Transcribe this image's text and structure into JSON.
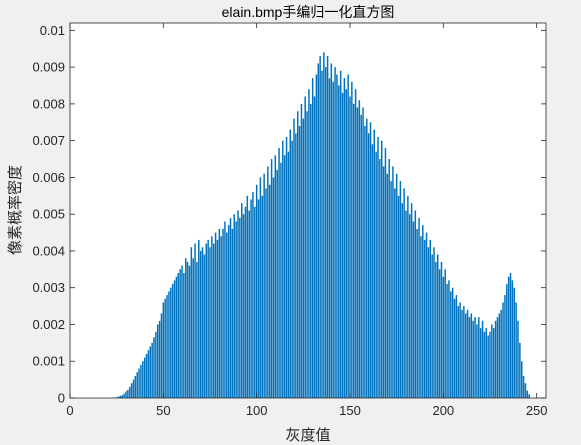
{
  "chart_data": {
    "type": "bar",
    "title": "elain.bmp手编归一化直方图",
    "xlabel": "灰度值",
    "ylabel": "像素概率密度",
    "xlim": [
      0,
      255
    ],
    "ylim": [
      0,
      0.0102
    ],
    "xticks": [
      0,
      50,
      100,
      150,
      200,
      250
    ],
    "yticks": [
      0,
      0.001,
      0.002,
      0.003,
      0.004,
      0.005,
      0.006,
      0.007,
      0.008,
      0.009,
      0.01
    ],
    "ytick_labels": [
      "0",
      "0.001",
      "0.002",
      "0.003",
      "0.004",
      "0.005",
      "0.006",
      "0.007",
      "0.008",
      "0.009",
      "0.01"
    ],
    "bar_color": "#0072bd",
    "grid": false,
    "x_start": 0,
    "values": [
      0,
      0,
      0,
      0,
      0,
      0,
      0,
      0,
      0,
      0,
      0,
      0,
      0,
      0,
      0,
      0,
      0,
      0,
      0,
      0,
      0,
      0,
      0,
      0,
      1e-05,
      2e-05,
      4e-05,
      6e-05,
      8e-05,
      0.00012,
      0.00018,
      0.00022,
      0.0003,
      0.0004,
      0.0005,
      0.0006,
      0.0007,
      0.0008,
      0.0009,
      0.001,
      0.0011,
      0.0012,
      0.0013,
      0.0014,
      0.0015,
      0.00165,
      0.0018,
      0.002,
      0.0021,
      0.0023,
      0.0026,
      0.0027,
      0.0028,
      0.0029,
      0.003,
      0.0031,
      0.0032,
      0.0033,
      0.0034,
      0.0035,
      0.0036,
      0.0034,
      0.0038,
      0.0037,
      0.0036,
      0.0041,
      0.0038,
      0.0042,
      0.0037,
      0.0043,
      0.004,
      0.0041,
      0.0039,
      0.0042,
      0.0043,
      0.0041,
      0.0044,
      0.0042,
      0.0045,
      0.0043,
      0.0046,
      0.0044,
      0.0046,
      0.0048,
      0.0045,
      0.0047,
      0.0049,
      0.0046,
      0.005,
      0.0048,
      0.0051,
      0.0049,
      0.0053,
      0.005,
      0.0052,
      0.0055,
      0.0051,
      0.0054,
      0.0056,
      0.0052,
      0.0058,
      0.0054,
      0.006,
      0.0055,
      0.0061,
      0.0057,
      0.0063,
      0.0058,
      0.0065,
      0.006,
      0.0066,
      0.0062,
      0.0068,
      0.0064,
      0.007,
      0.0066,
      0.0071,
      0.0067,
      0.0073,
      0.007,
      0.0076,
      0.0072,
      0.0078,
      0.0074,
      0.008,
      0.0076,
      0.0082,
      0.0078,
      0.0084,
      0.008,
      0.0087,
      0.0082,
      0.0088,
      0.0091,
      0.0093,
      0.0089,
      0.0094,
      0.009,
      0.0093,
      0.0087,
      0.0091,
      0.0086,
      0.009,
      0.0088,
      0.0085,
      0.0089,
      0.0083,
      0.0087,
      0.0084,
      0.0088,
      0.0082,
      0.0086,
      0.008,
      0.0084,
      0.0079,
      0.0081,
      0.0077,
      0.0079,
      0.0074,
      0.0076,
      0.0072,
      0.0075,
      0.0069,
      0.0073,
      0.0067,
      0.0071,
      0.0065,
      0.007,
      0.0063,
      0.0068,
      0.0061,
      0.0065,
      0.0059,
      0.0063,
      0.0057,
      0.0061,
      0.0055,
      0.0059,
      0.0053,
      0.0057,
      0.0051,
      0.0055,
      0.005,
      0.0053,
      0.0048,
      0.0051,
      0.0046,
      0.0049,
      0.0044,
      0.0047,
      0.0043,
      0.0045,
      0.0041,
      0.0043,
      0.0039,
      0.0041,
      0.0037,
      0.0039,
      0.0035,
      0.0037,
      0.0033,
      0.0035,
      0.0031,
      0.0032,
      0.0029,
      0.003,
      0.0027,
      0.0028,
      0.0025,
      0.0026,
      0.0024,
      0.0025,
      0.0023,
      0.0024,
      0.0022,
      0.0023,
      0.0021,
      0.0022,
      0.002,
      0.0022,
      0.0019,
      0.0021,
      0.0018,
      0.0019,
      0.0017,
      0.0018,
      0.002,
      0.0019,
      0.0021,
      0.0022,
      0.0023,
      0.0024,
      0.0026,
      0.0028,
      0.0031,
      0.0033,
      0.0034,
      0.0032,
      0.003,
      0.0026,
      0.0021,
      0.0015,
      0.001,
      0.0006,
      0.0004,
      0.0002,
      0.0001,
      0,
      0,
      0,
      0,
      0,
      0,
      0,
      0,
      0,
      0,
      0,
      0,
      0,
      0,
      0,
      0,
      0,
      0,
      0
    ]
  }
}
